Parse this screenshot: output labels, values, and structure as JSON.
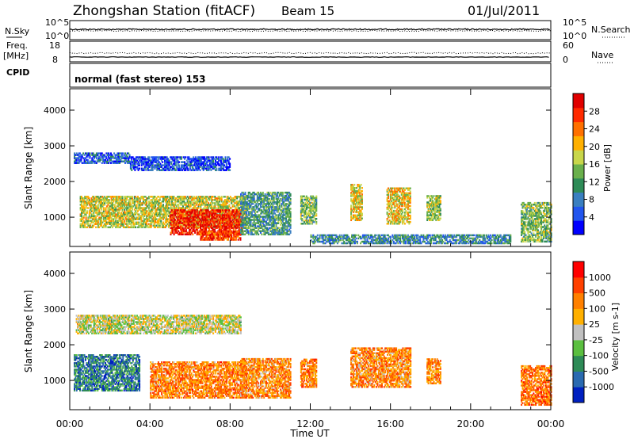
{
  "header": {
    "station": "Zhongshan Station (fitACF)",
    "beam": "Beam 15",
    "date": "01/Jul/2011"
  },
  "panels": {
    "nsky": {
      "left_label": "N.Sky",
      "left_ticks": [
        "10^5",
        "10^0"
      ],
      "right_label": "N.Search",
      "right_ticks": [
        "10^5",
        "10^0"
      ]
    },
    "freq": {
      "left_label": "Freq.",
      "left_unit": "[MHz]",
      "left_ticks": [
        "18",
        "8"
      ],
      "right_label": "Nave",
      "right_ticks": [
        "60",
        "0"
      ]
    },
    "cpid": {
      "label": "CPID",
      "text": "normal (fast stereo) 153"
    }
  },
  "chart_data": [
    {
      "type": "heatmap",
      "title": "",
      "xlabel": "Time UT",
      "ylabel": "Slant Range [km]",
      "xlim": [
        0,
        24
      ],
      "ylim": [
        180,
        4600
      ],
      "x_ticks": [
        "00:00",
        "04:00",
        "08:00",
        "12:00",
        "16:00",
        "20:00",
        "00:00"
      ],
      "y_ticks": [
        "1000",
        "2000",
        "3000",
        "4000"
      ],
      "colorbar": {
        "label": "Power [dB]",
        "ticks": [
          "4",
          "8",
          "12",
          "16",
          "20",
          "24",
          "28"
        ],
        "range": [
          0,
          32
        ],
        "colors": [
          "#0000ff",
          "#2255ee",
          "#3a7fc0",
          "#2e8b57",
          "#6ab04c",
          "#c8d64a",
          "#ffb000",
          "#ff7000",
          "#ff2a00",
          "#e00000"
        ]
      },
      "echo_regions": [
        {
          "t": [
            0.5,
            8.8
          ],
          "r": [
            700,
            1600
          ],
          "level": 0.55
        },
        {
          "t": [
            0.2,
            3.0
          ],
          "r": [
            2500,
            2800
          ],
          "level": 0.2
        },
        {
          "t": [
            3.0,
            8.0
          ],
          "r": [
            2300,
            2700
          ],
          "level": 0.15
        },
        {
          "t": [
            5.0,
            8.6
          ],
          "r": [
            500,
            1200
          ],
          "level": 0.9
        },
        {
          "t": [
            6.5,
            8.5
          ],
          "r": [
            350,
            600
          ],
          "level": 0.85
        },
        {
          "t": [
            8.5,
            11.0
          ],
          "r": [
            500,
            1700
          ],
          "level": 0.35
        },
        {
          "t": [
            11.5,
            12.3
          ],
          "r": [
            800,
            1600
          ],
          "level": 0.45
        },
        {
          "t": [
            14.0,
            14.6
          ],
          "r": [
            900,
            1900
          ],
          "level": 0.6
        },
        {
          "t": [
            15.8,
            17.0
          ],
          "r": [
            800,
            1800
          ],
          "level": 0.6
        },
        {
          "t": [
            17.8,
            18.5
          ],
          "r": [
            900,
            1600
          ],
          "level": 0.5
        },
        {
          "t": [
            22.5,
            24.0
          ],
          "r": [
            300,
            1400
          ],
          "level": 0.45
        },
        {
          "t": [
            12.0,
            22.0
          ],
          "r": [
            250,
            500
          ],
          "level": 0.3
        }
      ]
    },
    {
      "type": "heatmap",
      "title": "",
      "xlabel": "Time UT",
      "ylabel": "Slant Range [km]",
      "xlim": [
        0,
        24
      ],
      "ylim": [
        180,
        4600
      ],
      "x_ticks": [
        "00:00",
        "04:00",
        "08:00",
        "12:00",
        "16:00",
        "20:00",
        "00:00"
      ],
      "y_ticks": [
        "1000",
        "2000",
        "3000",
        "4000"
      ],
      "colorbar": {
        "label": "Velocity [m s-1]",
        "ticks": [
          "1000",
          "500",
          "100",
          "25",
          "-25",
          "-100",
          "-500",
          "-1000"
        ],
        "colors": [
          "#0020c0",
          "#2a6ab0",
          "#2e8b57",
          "#5bbf40",
          "#c0c0c0",
          "#ffb000",
          "#ff8000",
          "#ff4000",
          "#ff0000"
        ]
      },
      "echo_regions": [
        {
          "t": [
            0.2,
            3.5
          ],
          "r": [
            700,
            1700
          ],
          "level": 0.22
        },
        {
          "t": [
            0.3,
            8.5
          ],
          "r": [
            2300,
            2800
          ],
          "level": 0.5
        },
        {
          "t": [
            4.0,
            8.8
          ],
          "r": [
            500,
            1500
          ],
          "level": 0.72
        },
        {
          "t": [
            8.5,
            11.0
          ],
          "r": [
            500,
            1600
          ],
          "level": 0.7
        },
        {
          "t": [
            11.5,
            12.3
          ],
          "r": [
            800,
            1600
          ],
          "level": 0.72
        },
        {
          "t": [
            14.0,
            17.0
          ],
          "r": [
            800,
            1900
          ],
          "level": 0.7
        },
        {
          "t": [
            17.8,
            18.5
          ],
          "r": [
            900,
            1600
          ],
          "level": 0.72
        },
        {
          "t": [
            22.5,
            24.0
          ],
          "r": [
            300,
            1400
          ],
          "level": 0.75
        }
      ]
    }
  ]
}
